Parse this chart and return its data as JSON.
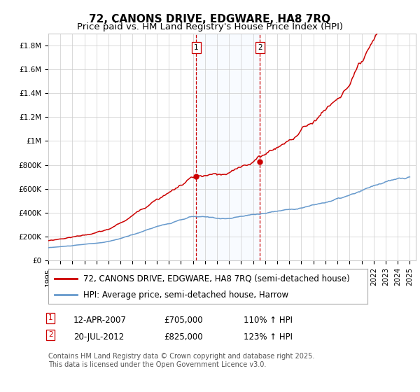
{
  "title": "72, CANONS DRIVE, EDGWARE, HA8 7RQ",
  "subtitle": "Price paid vs. HM Land Registry's House Price Index (HPI)",
  "xlabel": "",
  "ylabel": "",
  "ylim": [
    0,
    1900000
  ],
  "yticks": [
    0,
    200000,
    400000,
    600000,
    800000,
    1000000,
    1200000,
    1400000,
    1600000,
    1800000
  ],
  "ytick_labels": [
    "£0",
    "£200K",
    "£400K",
    "£600K",
    "£800K",
    "£1M",
    "£1.2M",
    "£1.4M",
    "£1.6M",
    "£1.8M"
  ],
  "x_start_year": 1995,
  "x_end_year": 2025,
  "line1_color": "#cc0000",
  "line2_color": "#6699cc",
  "marker_color": "#cc0000",
  "shade_color": "#ddeeff",
  "vline_color": "#cc0000",
  "grid_color": "#cccccc",
  "background_color": "#ffffff",
  "legend_line1": "72, CANONS DRIVE, EDGWARE, HA8 7RQ (semi-detached house)",
  "legend_line2": "HPI: Average price, semi-detached house, Harrow",
  "sale1_date": "12-APR-2007",
  "sale1_price": 705000,
  "sale1_label": "£705,000",
  "sale1_hpi": "110% ↑ HPI",
  "sale2_date": "20-JUL-2012",
  "sale2_price": 825000,
  "sale2_label": "£825,000",
  "sale2_hpi": "123% ↑ HPI",
  "sale1_x": 2007.28,
  "sale2_x": 2012.55,
  "copyright_text": "Contains HM Land Registry data © Crown copyright and database right 2025.\nThis data is licensed under the Open Government Licence v3.0.",
  "title_fontsize": 11,
  "subtitle_fontsize": 9.5,
  "tick_fontsize": 7.5,
  "legend_fontsize": 8.5,
  "annotation_fontsize": 8.5,
  "copyright_fontsize": 7
}
